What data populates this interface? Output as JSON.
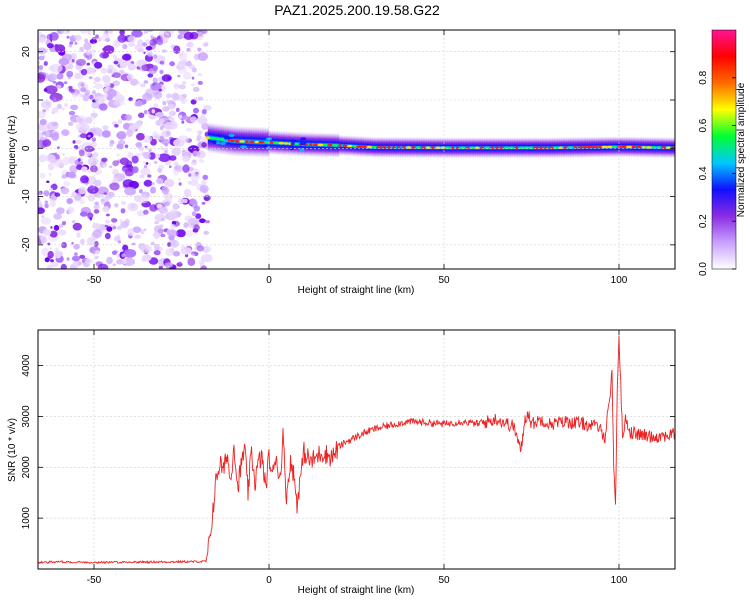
{
  "title": "PAZ1.2025.200.19.58.G22",
  "chart_data": [
    {
      "type": "heatmap",
      "xlabel": "Height of straight line (km)",
      "ylabel": "Frequency (Hz)",
      "xlim": [
        -66,
        116
      ],
      "ylim": [
        -25,
        24.5
      ],
      "xticks": [
        -50,
        0,
        50,
        100
      ],
      "xtick_labels": [
        "-50",
        "0",
        "50",
        "100"
      ],
      "yticks": [
        -20,
        -10,
        0,
        10,
        20
      ],
      "ytick_labels": [
        "-20",
        "-10",
        "0",
        "10",
        "20"
      ],
      "noise_region_x": [
        -66,
        -17.5
      ],
      "signal_start_x": -17.5,
      "signal_ridge": [
        {
          "x": -17.5,
          "freq": 2.2
        },
        {
          "x": -10,
          "freq": 1.5
        },
        {
          "x": 0,
          "freq": 1.2
        },
        {
          "x": 10,
          "freq": 0.8
        },
        {
          "x": 20,
          "freq": 0.6
        },
        {
          "x": 30,
          "freq": 0.2
        },
        {
          "x": 50,
          "freq": 0.1
        },
        {
          "x": 80,
          "freq": 0.1
        },
        {
          "x": 100,
          "freq": 0.3
        },
        {
          "x": 116,
          "freq": 0.1
        }
      ],
      "colorbar": {
        "label": "Normalized spectral amplitude",
        "range": [
          0,
          1
        ],
        "ticks": [
          0.0,
          0.2,
          0.4,
          0.6,
          0.8
        ],
        "tick_labels": [
          "0.0",
          "0.2",
          "0.4",
          "0.6",
          "0.8"
        ],
        "colors": [
          "#ffffff",
          "#c8a0ff",
          "#8a2be2",
          "#1010ff",
          "#00c8ff",
          "#00ff30",
          "#ffff00",
          "#ff6a00",
          "#ff0000",
          "#ff1493"
        ]
      },
      "grid": true
    },
    {
      "type": "line",
      "xlabel": "Height of straight line (km)",
      "ylabel": "SNR (10 * v/v)",
      "xlim": [
        -66,
        116
      ],
      "ylim": [
        0,
        4700
      ],
      "xticks": [
        -50,
        0,
        50,
        100
      ],
      "xtick_labels": [
        "-50",
        "0",
        "50",
        "100"
      ],
      "yticks": [
        1000,
        2000,
        3000,
        4000
      ],
      "ytick_labels": [
        "1000",
        "2000",
        "3000",
        "4000"
      ],
      "line_color": "#ee2222",
      "grid": true,
      "series": [
        {
          "x": [
            -66,
            -60,
            -50,
            -40,
            -30,
            -20,
            -18,
            -17,
            -16,
            -15,
            -14,
            -13,
            -12,
            -11,
            -10,
            -9,
            -8,
            -7,
            -6,
            -5,
            -4,
            -3,
            -2,
            -1,
            0,
            1,
            2,
            3,
            4,
            5,
            6,
            7,
            8,
            10,
            12,
            15,
            18,
            20,
            22,
            25,
            28,
            30,
            33,
            36,
            40,
            45,
            50,
            55,
            60,
            65,
            70,
            72,
            73,
            74,
            75,
            78,
            80,
            85,
            90,
            94,
            96,
            97,
            98,
            98.5,
            99,
            99.5,
            100,
            101,
            102,
            103,
            105,
            110,
            116
          ],
          "y": [
            130,
            140,
            130,
            135,
            140,
            145,
            150,
            500,
            1200,
            1800,
            2100,
            1900,
            2300,
            1700,
            2500,
            1600,
            2000,
            2400,
            1500,
            2300,
            1700,
            2100,
            2200,
            1600,
            2200,
            1800,
            2300,
            1700,
            2600,
            1400,
            2100,
            1900,
            1300,
            2300,
            2100,
            2300,
            2200,
            2400,
            2500,
            2600,
            2700,
            2750,
            2800,
            2850,
            2900,
            2880,
            2850,
            2900,
            2850,
            2950,
            2800,
            2300,
            2900,
            3100,
            2850,
            2950,
            2850,
            2900,
            2850,
            2800,
            2600,
            3200,
            3800,
            2100,
            1200,
            3500,
            4600,
            2600,
            3000,
            2700,
            2650,
            2600,
            2650
          ]
        }
      ]
    }
  ]
}
